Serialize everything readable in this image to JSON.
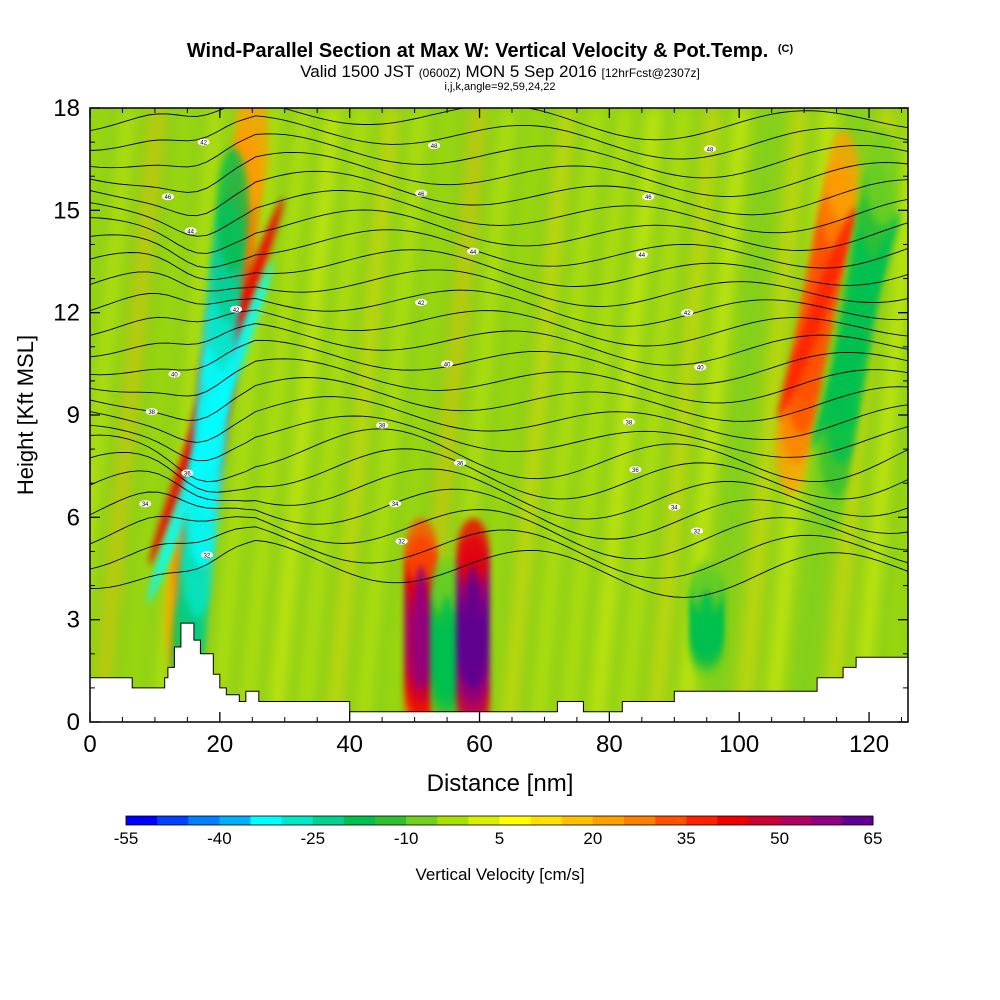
{
  "chart_data": {
    "type": "heatmap",
    "title": "Wind-Parallel Section at Max W: Vertical Velocity & Pot.Temp.",
    "title_mark": "(C)",
    "subtitle": {
      "prefix": "Valid 1500 JST",
      "utc": "(0600Z)",
      "date": "MON 5 Sep 2016",
      "forecast": "[12hrFcst@2307z]"
    },
    "subtitle2": "i,j,k,angle=92,59,24,22",
    "xlabel": "Distance [nm]",
    "ylabel": "Height [Kft MSL]",
    "xlim": [
      0,
      126
    ],
    "ylim": [
      0,
      18
    ],
    "xticks": [
      0,
      20,
      40,
      60,
      80,
      100,
      120
    ],
    "yticks": [
      0,
      3,
      6,
      9,
      12,
      15,
      18
    ],
    "colorbar": {
      "label": "Vertical Velocity [cm/s]",
      "tick_labels": [
        -55,
        -40,
        -25,
        -10,
        5,
        20,
        35,
        50,
        65
      ],
      "colors": [
        "#0000ff",
        "#0040ff",
        "#0080ff",
        "#00b0ff",
        "#00ffff",
        "#00e8c8",
        "#00d090",
        "#00c050",
        "#30c030",
        "#70d020",
        "#a8e000",
        "#d8f000",
        "#ffff00",
        "#ffe000",
        "#ffc000",
        "#ffa000",
        "#ff8000",
        "#ff5000",
        "#ff2000",
        "#ee0000",
        "#cc0030",
        "#b00060",
        "#900080",
        "#600090"
      ]
    },
    "features": [
      {
        "type": "updraft",
        "x0": 14,
        "x1": 25,
        "y0": 3,
        "y1": 17,
        "peak": 35
      },
      {
        "type": "downdraft",
        "x0": 15,
        "x1": 22,
        "y0": 2,
        "y1": 15,
        "peak": -40
      },
      {
        "type": "updraft",
        "x0": 51,
        "x1": 51,
        "y0": 0.5,
        "y1": 5,
        "peak": 50
      },
      {
        "type": "downdraft",
        "x0": 55,
        "x1": 55,
        "y0": 0.5,
        "y1": 4,
        "peak": -25
      },
      {
        "type": "updraft",
        "x0": 59,
        "x1": 59,
        "y0": 0.5,
        "y1": 5,
        "peak": 65
      },
      {
        "type": "downdraft",
        "x0": 95,
        "x1": 95,
        "y0": 2,
        "y1": 4,
        "peak": -25
      },
      {
        "type": "updraft",
        "x0": 108,
        "x1": 116,
        "y0": 8,
        "y1": 16,
        "peak": 30
      },
      {
        "type": "downdraft",
        "x0": 114,
        "x1": 122,
        "y0": 7,
        "y1": 16,
        "peak": -25
      }
    ],
    "theta_contours": {
      "labels": [
        {
          "text": "42",
          "x": 17.5,
          "y": 17.0
        },
        {
          "text": "48",
          "x": 53,
          "y": 16.9
        },
        {
          "text": "48",
          "x": 95.5,
          "y": 16.8
        },
        {
          "text": "46",
          "x": 12,
          "y": 15.4
        },
        {
          "text": "46",
          "x": 51,
          "y": 15.5
        },
        {
          "text": "46",
          "x": 86,
          "y": 15.4
        },
        {
          "text": "44",
          "x": 15.5,
          "y": 14.4
        },
        {
          "text": "44",
          "x": 59,
          "y": 13.8
        },
        {
          "text": "44",
          "x": 85,
          "y": 13.7
        },
        {
          "text": "42",
          "x": 22.5,
          "y": 12.1
        },
        {
          "text": "42",
          "x": 51,
          "y": 12.3
        },
        {
          "text": "42",
          "x": 92,
          "y": 12.0
        },
        {
          "text": "40",
          "x": 13,
          "y": 10.2
        },
        {
          "text": "40",
          "x": 55,
          "y": 10.5
        },
        {
          "text": "40",
          "x": 94,
          "y": 10.4
        },
        {
          "text": "38",
          "x": 9.5,
          "y": 9.1
        },
        {
          "text": "38",
          "x": 45,
          "y": 8.7
        },
        {
          "text": "38",
          "x": 83,
          "y": 8.8
        },
        {
          "text": "36",
          "x": 15,
          "y": 7.3
        },
        {
          "text": "36",
          "x": 57,
          "y": 7.6
        },
        {
          "text": "36",
          "x": 84,
          "y": 7.4
        },
        {
          "text": "34",
          "x": 8.5,
          "y": 6.4
        },
        {
          "text": "34",
          "x": 47,
          "y": 6.4
        },
        {
          "text": "34",
          "x": 90,
          "y": 6.3
        },
        {
          "text": "32",
          "x": 18,
          "y": 4.9
        },
        {
          "text": "32",
          "x": 48,
          "y": 5.3
        },
        {
          "text": "32",
          "x": 93.5,
          "y": 5.6
        }
      ]
    },
    "terrain_height": [
      [
        0,
        1.3
      ],
      [
        6.5,
        1.3
      ],
      [
        6.5,
        1.0
      ],
      [
        11.5,
        1.0
      ],
      [
        11.5,
        1.3
      ],
      [
        12,
        1.3
      ],
      [
        12,
        1.6
      ],
      [
        13,
        1.6
      ],
      [
        13,
        2.2
      ],
      [
        14,
        2.2
      ],
      [
        14,
        2.9
      ],
      [
        16,
        2.9
      ],
      [
        16,
        2.4
      ],
      [
        17,
        2.4
      ],
      [
        17,
        2.0
      ],
      [
        19,
        2.0
      ],
      [
        19,
        1.4
      ],
      [
        20,
        1.4
      ],
      [
        20,
        1.0
      ],
      [
        21,
        1.0
      ],
      [
        21,
        0.8
      ],
      [
        23,
        0.8
      ],
      [
        23,
        0.6
      ],
      [
        24,
        0.6
      ],
      [
        24,
        0.9
      ],
      [
        26,
        0.9
      ],
      [
        26,
        0.6
      ],
      [
        27,
        0.6
      ],
      [
        27,
        0.6
      ],
      [
        40,
        0.6
      ],
      [
        40,
        0.3
      ],
      [
        72,
        0.3
      ],
      [
        72,
        0.6
      ],
      [
        76,
        0.6
      ],
      [
        76,
        0.3
      ],
      [
        80,
        0.3
      ],
      [
        80,
        0.3
      ],
      [
        82,
        0.3
      ],
      [
        82,
        0.6
      ],
      [
        90,
        0.6
      ],
      [
        90,
        0.9
      ],
      [
        100,
        0.9
      ],
      [
        100,
        0.9
      ],
      [
        112,
        0.9
      ],
      [
        112,
        1.3
      ],
      [
        116,
        1.3
      ],
      [
        116,
        1.6
      ],
      [
        118,
        1.6
      ],
      [
        118,
        1.9
      ],
      [
        126,
        1.9
      ]
    ]
  }
}
